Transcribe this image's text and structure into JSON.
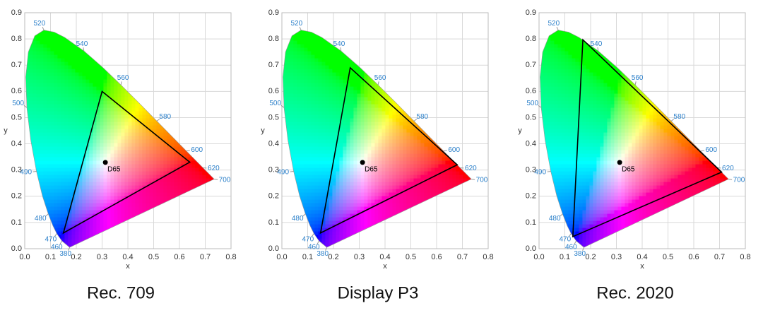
{
  "chart_data": [
    {
      "type": "chromaticity",
      "title": "Rec. 709",
      "xlabel": "x",
      "ylabel": "y",
      "xlim": [
        0,
        0.8
      ],
      "ylim": [
        0,
        0.9
      ],
      "xticks": [
        {
          "value": 0,
          "label": "0.0"
        },
        0.1,
        0.2,
        0.3,
        0.4,
        0.5,
        0.6,
        0.7,
        0.8
      ],
      "yticks": [
        {
          "value": 0,
          "label": "0.0"
        },
        0.1,
        0.2,
        0.3,
        0.4,
        0.5,
        0.6,
        0.7,
        0.8,
        0.9
      ],
      "grid": true,
      "locus": {
        "x": [
          0.1741,
          0.144,
          0.1241,
          0.1096,
          0.0913,
          0.0687,
          0.0454,
          0.0235,
          0.0082,
          0.0039,
          0.0139,
          0.0389,
          0.0743,
          0.1142,
          0.1547,
          0.2296,
          0.3016,
          0.3731,
          0.4441,
          0.5125,
          0.5752,
          0.627,
          0.6915,
          0.7347
        ],
        "y": [
          0.005,
          0.0297,
          0.0578,
          0.0868,
          0.1327,
          0.2007,
          0.295,
          0.4127,
          0.5384,
          0.6548,
          0.7502,
          0.812,
          0.8338,
          0.8262,
          0.8059,
          0.7543,
          0.6923,
          0.6245,
          0.5547,
          0.4866,
          0.4242,
          0.3725,
          0.3083,
          0.2653
        ],
        "labels": [
          380,
          460,
          470,
          null,
          480,
          null,
          490,
          null,
          500,
          null,
          null,
          null,
          520,
          null,
          null,
          540,
          null,
          560,
          null,
          580,
          null,
          600,
          620,
          700
        ]
      },
      "gamut": {
        "x": [
          0.64,
          0.3,
          0.15
        ],
        "y": [
          0.33,
          0.6,
          0.06
        ],
        "color": "#000000"
      },
      "white_point": {
        "label": "D65",
        "x": 0.3127,
        "y": 0.329
      }
    },
    {
      "type": "chromaticity",
      "title": "Display P3",
      "xlabel": "x",
      "ylabel": "y",
      "xlim": [
        0,
        0.8
      ],
      "ylim": [
        0,
        0.9
      ],
      "xticks": [
        {
          "value": 0,
          "label": "0.0"
        },
        0.1,
        0.2,
        0.3,
        0.4,
        0.5,
        0.6,
        0.7,
        0.8
      ],
      "yticks": [
        {
          "value": 0,
          "label": "0.0"
        },
        0.1,
        0.2,
        0.3,
        0.4,
        0.5,
        0.6,
        0.7,
        0.8,
        0.9
      ],
      "grid": true,
      "locus": {
        "x": [
          0.1741,
          0.144,
          0.1241,
          0.1096,
          0.0913,
          0.0687,
          0.0454,
          0.0235,
          0.0082,
          0.0039,
          0.0139,
          0.0389,
          0.0743,
          0.1142,
          0.1547,
          0.2296,
          0.3016,
          0.3731,
          0.4441,
          0.5125,
          0.5752,
          0.627,
          0.6915,
          0.7347
        ],
        "y": [
          0.005,
          0.0297,
          0.0578,
          0.0868,
          0.1327,
          0.2007,
          0.295,
          0.4127,
          0.5384,
          0.6548,
          0.7502,
          0.812,
          0.8338,
          0.8262,
          0.8059,
          0.7543,
          0.6923,
          0.6245,
          0.5547,
          0.4866,
          0.4242,
          0.3725,
          0.3083,
          0.2653
        ],
        "labels": [
          380,
          460,
          470,
          null,
          480,
          null,
          490,
          null,
          500,
          null,
          null,
          null,
          520,
          null,
          null,
          540,
          null,
          560,
          null,
          580,
          null,
          600,
          620,
          700
        ]
      },
      "gamut": {
        "x": [
          0.68,
          0.265,
          0.15
        ],
        "y": [
          0.32,
          0.69,
          0.06
        ],
        "color": "#000000"
      },
      "white_point": {
        "label": "D65",
        "x": 0.3127,
        "y": 0.329
      }
    },
    {
      "type": "chromaticity",
      "title": "Rec. 2020",
      "xlabel": "x",
      "ylabel": "y",
      "xlim": [
        0,
        0.8
      ],
      "ylim": [
        0,
        0.9
      ],
      "xticks": [
        {
          "value": 0,
          "label": "0.0"
        },
        0.1,
        0.2,
        0.3,
        0.4,
        0.5,
        0.6,
        0.7,
        0.8
      ],
      "yticks": [
        {
          "value": 0,
          "label": "0.0"
        },
        0.1,
        0.2,
        0.3,
        0.4,
        0.5,
        0.6,
        0.7,
        0.8,
        0.9
      ],
      "grid": true,
      "locus": {
        "x": [
          0.1741,
          0.144,
          0.1241,
          0.1096,
          0.0913,
          0.0687,
          0.0454,
          0.0235,
          0.0082,
          0.0039,
          0.0139,
          0.0389,
          0.0743,
          0.1142,
          0.1547,
          0.2296,
          0.3016,
          0.3731,
          0.4441,
          0.5125,
          0.5752,
          0.627,
          0.6915,
          0.7347
        ],
        "y": [
          0.005,
          0.0297,
          0.0578,
          0.0868,
          0.1327,
          0.2007,
          0.295,
          0.4127,
          0.5384,
          0.6548,
          0.7502,
          0.812,
          0.8338,
          0.8262,
          0.8059,
          0.7543,
          0.6923,
          0.6245,
          0.5547,
          0.4866,
          0.4242,
          0.3725,
          0.3083,
          0.2653
        ],
        "labels": [
          380,
          460,
          470,
          null,
          480,
          null,
          490,
          null,
          500,
          null,
          null,
          null,
          520,
          null,
          null,
          540,
          null,
          560,
          null,
          580,
          null,
          600,
          620,
          700
        ]
      },
      "gamut": {
        "x": [
          0.708,
          0.17,
          0.131
        ],
        "y": [
          0.292,
          0.797,
          0.046
        ],
        "color": "#000000"
      },
      "white_point": {
        "label": "D65",
        "x": 0.3127,
        "y": 0.329
      }
    }
  ]
}
